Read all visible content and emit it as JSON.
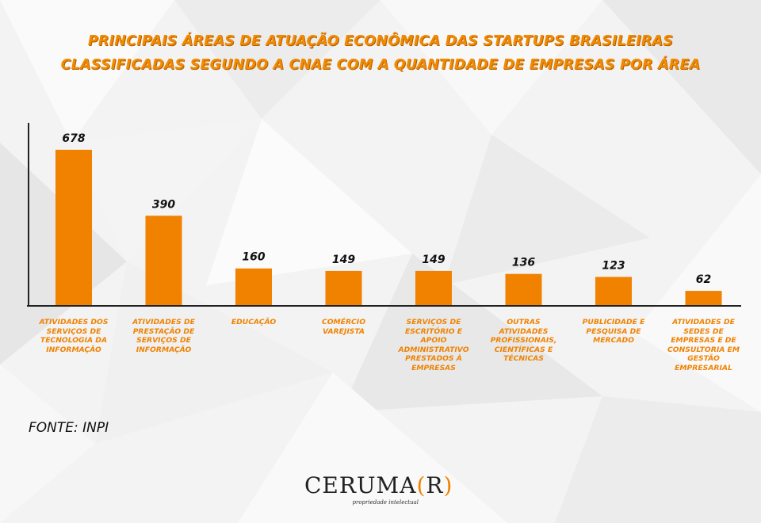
{
  "title_lines": [
    "PRINCIPAIS ÁREAS DE ATUAÇÃO ECONÔMICA DAS STARTUPS BRASILEIRAS",
    "CLASSIFICADAS SEGUNDO A CNAE COM A QUANTIDADE DE EMPRESAS POR ÁREA"
  ],
  "source": "FONTE: INPI",
  "logo": {
    "left": "CERUMA",
    "paren_open": "(",
    "letter": "R",
    "paren_close": ")",
    "tagline": "propriedade intelectual"
  },
  "colors": {
    "bar": "#f08200",
    "title": "#f28a00",
    "label": "#f08200"
  },
  "chart_data": {
    "type": "bar",
    "title": "PRINCIPAIS ÁREAS DE ATUAÇÃO ECONÔMICA DAS STARTUPS BRASILEIRAS CLASSIFICADAS SEGUNDO A CNAE COM A QUANTIDADE DE EMPRESAS POR ÁREA",
    "categories": [
      "ATIVIDADES DOS SERVIÇOS DE TECNOLOGIA DA INFORMAÇÃO",
      "ATIVIDADES DE PRESTAÇÃO DE SERVIÇOS DE INFORMAÇÃO",
      "EDUCAÇÃO",
      "COMÉRCIO VAREJISTA",
      "SERVIÇOS DE ESCRITÓRIO E APOIO ADMINISTRATIVO PRESTADOS À EMPRESAS",
      "OUTRAS ATIVIDADES PROFISSIONAIS, CIENTÍFICAS E TÉCNICAS",
      "PUBLICIDADE E PESQUISA DE MERCADO",
      "ATIVIDADES DE SEDES DE EMPRESAS E DE CONSULTORIA EM GESTÃO EMPRESARIAL"
    ],
    "values": [
      678,
      390,
      160,
      149,
      149,
      136,
      123,
      62
    ],
    "value_labels": [
      "678",
      "390",
      "160",
      "149",
      "149",
      "136",
      "123",
      "62"
    ],
    "xlabel": "",
    "ylabel": "",
    "ylim": [
      0,
      700
    ],
    "grid": false,
    "legend": "none"
  }
}
